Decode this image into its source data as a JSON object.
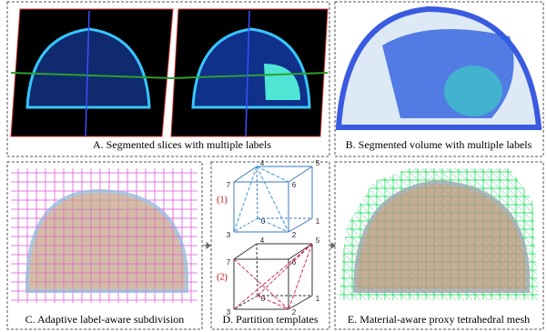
{
  "panels": [
    {
      "caption": "A. Segmented slices with multiple labels"
    },
    {
      "caption": "B. Segmented volume with multiple labels"
    },
    {
      "caption": "C. Adaptive label-aware subdivision"
    },
    {
      "caption": "D. Partition templates"
    },
    {
      "caption": "E. Material-aware proxy tetrahedral mesh"
    }
  ],
  "templates": [
    {
      "label": "(1)",
      "vertex_labels": [
        "0",
        "1",
        "2",
        "3",
        "4",
        "5",
        "6",
        "7"
      ]
    },
    {
      "label": "(2)",
      "vertex_labels": [
        "0",
        "1",
        "2",
        "3",
        "4",
        "5",
        "6",
        "7"
      ]
    }
  ]
}
